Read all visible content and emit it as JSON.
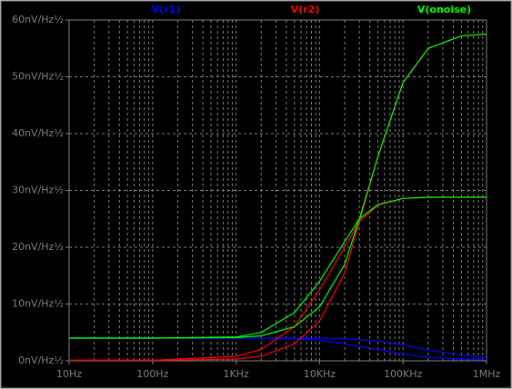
{
  "chart_data": {
    "type": "line",
    "x": [
      10,
      100,
      1000,
      2000,
      5000,
      10000,
      20000,
      30000,
      50000,
      100000,
      200000,
      500000,
      1000000
    ],
    "series": [
      {
        "name": "V(r1)",
        "color": "#0000ff",
        "steps": [
          [
            4,
            4,
            4,
            4,
            4,
            4,
            3.9,
            3.7,
            3.5,
            2.8,
            1.9,
            1.0,
            0.6
          ],
          [
            4,
            4,
            4,
            4,
            3.9,
            3.6,
            3,
            2.5,
            2,
            1.2,
            0.6,
            0.3,
            0.2
          ]
        ]
      },
      {
        "name": "V(r2)",
        "color": "#ff0000",
        "steps": [
          [
            0.1,
            0.1,
            0.3,
            0.8,
            3,
            7,
            15.5,
            24.5,
            36,
            49,
            55,
            57.2,
            57.5
          ],
          [
            0.1,
            0.1,
            0.8,
            2,
            6,
            12.5,
            20,
            24.5,
            27.4,
            28.6,
            28.8,
            28.8,
            28.8
          ]
        ]
      },
      {
        "name": "V(onoise)",
        "color": "#00ff00",
        "steps": [
          [
            4,
            4,
            4.1,
            4.4,
            6,
            9.5,
            17,
            25,
            36,
            49,
            55,
            57.2,
            57.5
          ],
          [
            4,
            4,
            4.2,
            5,
            8.5,
            14,
            21,
            25,
            27.5,
            28.6,
            28.8,
            28.8,
            28.8
          ]
        ]
      }
    ],
    "xscale": "log",
    "xlim": [
      10,
      1000000
    ],
    "ylim": [
      0,
      60
    ],
    "xticks": [
      {
        "value": 10,
        "label": "10Hz"
      },
      {
        "value": 100,
        "label": "100Hz"
      },
      {
        "value": 1000,
        "label": "1KHz"
      },
      {
        "value": 10000,
        "label": "10KHz"
      },
      {
        "value": 100000,
        "label": "100KHz"
      },
      {
        "value": 1000000,
        "label": "1MHz"
      }
    ],
    "minor_xticks": [
      20,
      30,
      40,
      50,
      60,
      70,
      80,
      90,
      200,
      300,
      400,
      500,
      600,
      700,
      800,
      900,
      2000,
      3000,
      4000,
      5000,
      6000,
      7000,
      8000,
      9000,
      20000,
      30000,
      40000,
      50000,
      60000,
      70000,
      80000,
      90000,
      200000,
      300000,
      400000,
      500000,
      600000,
      700000,
      800000,
      900000
    ],
    "yticks": [
      {
        "value": 0,
        "label": "0nV/Hz½"
      },
      {
        "value": 10,
        "label": "10nV/Hz½"
      },
      {
        "value": 20,
        "label": "20nV/Hz½"
      },
      {
        "value": 30,
        "label": "30nV/Hz½"
      },
      {
        "value": 40,
        "label": "40nV/Hz½"
      },
      {
        "value": 50,
        "label": "50nV/Hz½"
      },
      {
        "value": 60,
        "label": "60nV/Hz½"
      }
    ],
    "grid": true
  }
}
